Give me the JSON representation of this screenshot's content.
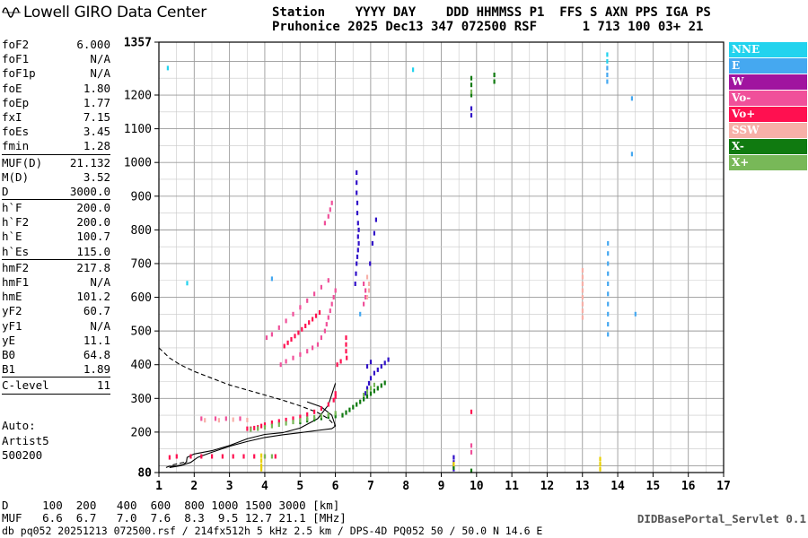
{
  "logo": {
    "text": "Lowell GIRO Data Center",
    "icon": "sine-wave-icon"
  },
  "header": {
    "line1": "Station    YYYY DAY    DDD HHMMSS P1  FFS S AXN PPS IGA PS",
    "line2": "Pruhonice 2025 Dec13 347 072500 RSF      1 713 100 03+ 21"
  },
  "params": [
    {
      "label": "foF2",
      "value": "6.000"
    },
    {
      "label": "foF1",
      "value": "N/A"
    },
    {
      "label": "foF1p",
      "value": "N/A"
    },
    {
      "label": "foE",
      "value": "1.80"
    },
    {
      "label": "foEp",
      "value": "1.77"
    },
    {
      "label": "fxI",
      "value": "7.15"
    },
    {
      "label": "foEs",
      "value": "3.45"
    },
    {
      "label": "fmin",
      "value": "1.28"
    },
    {
      "sep": true
    },
    {
      "label": "MUF(D)",
      "value": "21.132"
    },
    {
      "label": "M(D)",
      "value": "3.52"
    },
    {
      "label": "D",
      "value": "3000.0"
    },
    {
      "sep": true
    },
    {
      "label": "h`F",
      "value": "200.0"
    },
    {
      "label": "h`F2",
      "value": "200.0"
    },
    {
      "label": "h`E",
      "value": "100.7"
    },
    {
      "label": "h`Es",
      "value": "115.0"
    },
    {
      "sep": true
    },
    {
      "label": "hmF2",
      "value": "217.8"
    },
    {
      "label": "hmF1",
      "value": "N/A"
    },
    {
      "label": "hmE",
      "value": "101.2"
    },
    {
      "label": "yF2",
      "value": "60.7"
    },
    {
      "label": "yF1",
      "value": "N/A"
    },
    {
      "label": "yE",
      "value": "11.1"
    },
    {
      "label": "B0",
      "value": "64.8"
    },
    {
      "label": "B1",
      "value": "1.89"
    },
    {
      "sep": true
    },
    {
      "label": "C-level",
      "value": "11"
    },
    {
      "sep": true
    }
  ],
  "auto": {
    "line1": "Auto:",
    "line2": "Artist5",
    "line3": "500200"
  },
  "legend": [
    {
      "label": "NNE",
      "color": "#22d3ee"
    },
    {
      "label": "E",
      "color": "#45a8f0"
    },
    {
      "label": "W",
      "color": "#a0149f"
    },
    {
      "label": "Vo-",
      "color": "#f0509a"
    },
    {
      "label": "Vo+",
      "color": "#ff1050"
    },
    {
      "label": "SSW",
      "color": "#f7b0a8"
    },
    {
      "label": "X-",
      "color": "#107a10"
    },
    {
      "label": "X+",
      "color": "#78b858"
    }
  ],
  "dmuf": {
    "d_line": "D     100  200   400  600  800 1000 1500 3000 [km]",
    "muf_line": "MUF   6.6  6.7   7.0  7.6  8.3  9.5 12.7 21.1 [MHz]"
  },
  "servlet": "DIDBasePortal_Servlet 0.1",
  "footer": "db pq052 20251213 072500.rsf / 214fx512h 5 kHz 2.5 km / DPS-4D PQ052 50 / 50.0 N 14.6 E",
  "chart_data": {
    "type": "scatter",
    "x_ticks": [
      1,
      2,
      3,
      4,
      5,
      6,
      7,
      8,
      9,
      10,
      11,
      12,
      13,
      14,
      15,
      16,
      17
    ],
    "y_ticks": [
      80,
      200,
      300,
      400,
      500,
      600,
      700,
      800,
      900,
      1000,
      1100,
      1200,
      1357
    ],
    "xlim": [
      1,
      17
    ],
    "ylim": [
      80,
      1357
    ],
    "grid": true,
    "series": [
      {
        "name": "NNE",
        "color": "#22d3ee",
        "points": [
          [
            1.25,
            1280
          ],
          [
            13.7,
            1320
          ],
          [
            13.7,
            1300
          ],
          [
            8.2,
            1275
          ],
          [
            1.8,
            642
          ]
        ]
      },
      {
        "name": "E",
        "color": "#45a8f0",
        "points": [
          [
            13.7,
            1280
          ],
          [
            13.7,
            1260
          ],
          [
            13.7,
            1240
          ],
          [
            13.72,
            760
          ],
          [
            13.72,
            730
          ],
          [
            13.72,
            700
          ],
          [
            13.72,
            670
          ],
          [
            13.72,
            640
          ],
          [
            13.72,
            610
          ],
          [
            13.72,
            580
          ],
          [
            13.72,
            550
          ],
          [
            13.72,
            520
          ],
          [
            13.72,
            490
          ],
          [
            14.4,
            1190
          ],
          [
            14.4,
            1025
          ],
          [
            14.5,
            550
          ],
          [
            4.2,
            655
          ],
          [
            6.7,
            550
          ]
        ]
      },
      {
        "name": "W",
        "color": "#3010c8",
        "points": [
          [
            6.6,
            970
          ],
          [
            6.6,
            940
          ],
          [
            6.6,
            910
          ],
          [
            6.62,
            880
          ],
          [
            6.62,
            850
          ],
          [
            6.64,
            820
          ],
          [
            6.66,
            800
          ],
          [
            6.64,
            780
          ],
          [
            6.66,
            760
          ],
          [
            6.64,
            740
          ],
          [
            6.62,
            720
          ],
          [
            6.6,
            700
          ],
          [
            6.58,
            670
          ],
          [
            6.56,
            640
          ],
          [
            7.15,
            830
          ],
          [
            7.1,
            790
          ],
          [
            7.05,
            760
          ],
          [
            6.98,
            700
          ],
          [
            9.85,
            1160
          ],
          [
            9.85,
            1140
          ],
          [
            9.35,
            125
          ],
          [
            9.35,
            110
          ],
          [
            9.35,
            100
          ],
          [
            9.35,
            90
          ],
          [
            6.8,
            300
          ],
          [
            6.85,
            315
          ],
          [
            6.9,
            330
          ],
          [
            6.95,
            345
          ],
          [
            7.0,
            360
          ],
          [
            7.1,
            375
          ],
          [
            7.2,
            385
          ],
          [
            7.3,
            395
          ],
          [
            7.4,
            405
          ],
          [
            7.5,
            415
          ],
          [
            7.0,
            408
          ],
          [
            6.9,
            395
          ]
        ]
      },
      {
        "name": "Vo-",
        "color": "#f0509a",
        "points": [
          [
            5.9,
            880
          ],
          [
            5.85,
            860
          ],
          [
            5.8,
            840
          ],
          [
            5.7,
            820
          ],
          [
            6.0,
            620
          ],
          [
            5.95,
            600
          ],
          [
            5.9,
            580
          ],
          [
            5.85,
            560
          ],
          [
            5.8,
            540
          ],
          [
            5.75,
            520
          ],
          [
            5.7,
            500
          ],
          [
            5.6,
            480
          ],
          [
            5.5,
            460
          ],
          [
            5.35,
            450
          ],
          [
            5.2,
            440
          ],
          [
            5.0,
            430
          ],
          [
            4.8,
            420
          ],
          [
            4.6,
            410
          ],
          [
            4.45,
            400
          ],
          [
            5.8,
            650
          ],
          [
            5.6,
            630
          ],
          [
            5.4,
            610
          ],
          [
            5.2,
            590
          ],
          [
            5.0,
            570
          ],
          [
            4.8,
            550
          ],
          [
            4.6,
            530
          ],
          [
            4.4,
            510
          ],
          [
            4.2,
            490
          ],
          [
            4.05,
            480
          ],
          [
            6.8,
            640
          ],
          [
            6.85,
            620
          ],
          [
            6.85,
            600
          ],
          [
            6.8,
            580
          ],
          [
            2.2,
            240
          ],
          [
            2.6,
            240
          ],
          [
            2.9,
            240
          ],
          [
            3.3,
            240
          ],
          [
            9.85,
            140
          ],
          [
            9.85,
            160
          ]
        ]
      },
      {
        "name": "Vo+",
        "color": "#ff1050",
        "points": [
          [
            6.3,
            480
          ],
          [
            6.3,
            460
          ],
          [
            6.3,
            440
          ],
          [
            6.32,
            420
          ],
          [
            6.15,
            410
          ],
          [
            6.05,
            400
          ],
          [
            5.55,
            555
          ],
          [
            5.45,
            545
          ],
          [
            5.35,
            535
          ],
          [
            5.25,
            525
          ],
          [
            5.15,
            515
          ],
          [
            5.05,
            505
          ],
          [
            4.95,
            495
          ],
          [
            4.85,
            485
          ],
          [
            4.75,
            475
          ],
          [
            4.65,
            465
          ],
          [
            4.55,
            455
          ],
          [
            3.5,
            210
          ],
          [
            3.6,
            210
          ],
          [
            3.7,
            212
          ],
          [
            3.8,
            214
          ],
          [
            3.9,
            218
          ],
          [
            4.0,
            222
          ],
          [
            4.2,
            228
          ],
          [
            4.4,
            232
          ],
          [
            4.6,
            236
          ],
          [
            4.8,
            240
          ],
          [
            5.0,
            245
          ],
          [
            5.2,
            252
          ],
          [
            5.4,
            260
          ],
          [
            5.6,
            270
          ],
          [
            5.8,
            282
          ],
          [
            5.95,
            295
          ],
          [
            6.0,
            305
          ],
          [
            6.0,
            315
          ],
          [
            9.85,
            260
          ],
          [
            1.3,
            125
          ],
          [
            1.5,
            128
          ],
          [
            1.9,
            128
          ],
          [
            2.2,
            128
          ],
          [
            2.5,
            128
          ],
          [
            2.8,
            128
          ],
          [
            3.1,
            128
          ],
          [
            3.4,
            128
          ],
          [
            3.7,
            128
          ],
          [
            4.0,
            128
          ],
          [
            4.3,
            128
          ]
        ]
      },
      {
        "name": "SSW",
        "color": "#f7b0a8",
        "points": [
          [
            13.0,
            680
          ],
          [
            13.0,
            660
          ],
          [
            13.0,
            640
          ],
          [
            13.0,
            620
          ],
          [
            13.0,
            600
          ],
          [
            13.0,
            580
          ],
          [
            13.0,
            560
          ],
          [
            13.0,
            540
          ],
          [
            6.9,
            660
          ],
          [
            6.95,
            640
          ],
          [
            6.95,
            620
          ],
          [
            6.9,
            600
          ],
          [
            2.3,
            235
          ],
          [
            2.7,
            235
          ],
          [
            3.1,
            237
          ],
          [
            3.5,
            236
          ]
        ]
      },
      {
        "name": "X-",
        "color": "#107a10",
        "points": [
          [
            6.2,
            250
          ],
          [
            6.3,
            258
          ],
          [
            6.4,
            266
          ],
          [
            6.5,
            274
          ],
          [
            6.6,
            282
          ],
          [
            6.7,
            290
          ],
          [
            6.8,
            298
          ],
          [
            6.9,
            306
          ],
          [
            7.0,
            314
          ],
          [
            7.1,
            322
          ],
          [
            7.2,
            330
          ],
          [
            7.3,
            338
          ],
          [
            7.4,
            346
          ],
          [
            5.0,
            230
          ],
          [
            5.2,
            235
          ],
          [
            5.4,
            238
          ],
          [
            5.6,
            242
          ],
          [
            5.8,
            246
          ],
          [
            6.0,
            248
          ],
          [
            9.85,
            1250
          ],
          [
            9.85,
            1230
          ],
          [
            9.85,
            1200
          ],
          [
            10.5,
            1260
          ],
          [
            10.5,
            1240
          ],
          [
            9.85,
            85
          ],
          [
            9.35,
            95
          ]
        ]
      },
      {
        "name": "X+",
        "color": "#78b858",
        "points": [
          [
            3.6,
            208
          ],
          [
            3.8,
            210
          ],
          [
            4.0,
            214
          ],
          [
            4.2,
            218
          ],
          [
            4.4,
            222
          ],
          [
            4.6,
            226
          ],
          [
            4.8,
            230
          ],
          [
            5.0,
            235
          ],
          [
            5.2,
            240
          ],
          [
            5.4,
            244
          ],
          [
            5.6,
            248
          ],
          [
            5.8,
            252
          ],
          [
            6.0,
            256
          ],
          [
            6.8,
            310
          ],
          [
            6.9,
            320
          ],
          [
            7.0,
            330
          ],
          [
            7.1,
            340
          ],
          [
            9.85,
            1210
          ],
          [
            4.0,
            128
          ],
          [
            4.2,
            128
          ]
        ]
      },
      {
        "name": "Es",
        "color": "#e8d000",
        "points": [
          [
            3.9,
            130
          ],
          [
            3.9,
            115
          ],
          [
            3.9,
            100
          ],
          [
            3.9,
            90
          ],
          [
            13.5,
            120
          ],
          [
            13.5,
            105
          ],
          [
            13.5,
            90
          ],
          [
            9.35,
            105
          ]
        ]
      }
    ],
    "traces": [
      {
        "name": "model-o",
        "style": "solid",
        "points": [
          [
            1.3,
            98
          ],
          [
            1.5,
            100
          ],
          [
            1.7,
            104
          ],
          [
            1.78,
            112
          ],
          [
            1.8,
            125
          ],
          [
            2.0,
            135
          ],
          [
            2.5,
            145
          ],
          [
            3.0,
            160
          ],
          [
            3.5,
            180
          ],
          [
            4.0,
            193
          ],
          [
            4.5,
            198
          ],
          [
            5.0,
            212
          ],
          [
            5.5,
            240
          ],
          [
            5.8,
            280
          ],
          [
            6.0,
            345
          ]
        ]
      },
      {
        "name": "model-x",
        "style": "solid",
        "points": [
          [
            1.3,
            95
          ],
          [
            1.6,
            100
          ],
          [
            1.9,
            110
          ],
          [
            2.1,
            125
          ],
          [
            2.5,
            140
          ],
          [
            3.0,
            158
          ],
          [
            3.5,
            172
          ],
          [
            4.0,
            184
          ],
          [
            4.5,
            192
          ],
          [
            5.0,
            198
          ],
          [
            5.5,
            205
          ],
          [
            5.9,
            210
          ],
          [
            6.0,
            218
          ],
          [
            5.9,
            250
          ],
          [
            5.6,
            275
          ],
          [
            5.2,
            290
          ]
        ]
      },
      {
        "name": "profile",
        "style": "dashed",
        "points": [
          [
            1.0,
            450
          ],
          [
            1.3,
            420
          ],
          [
            1.6,
            400
          ],
          [
            2.0,
            380
          ],
          [
            2.5,
            360
          ],
          [
            3.0,
            340
          ],
          [
            3.5,
            325
          ],
          [
            4.0,
            310
          ],
          [
            4.5,
            295
          ],
          [
            5.0,
            278
          ],
          [
            5.5,
            258
          ],
          [
            5.8,
            240
          ],
          [
            6.0,
            218
          ]
        ]
      },
      {
        "name": "profile-E",
        "style": "dashed",
        "points": [
          [
            1.2,
            95
          ],
          [
            1.4,
            103
          ],
          [
            1.6,
            108
          ],
          [
            1.8,
            112
          ]
        ]
      }
    ]
  }
}
